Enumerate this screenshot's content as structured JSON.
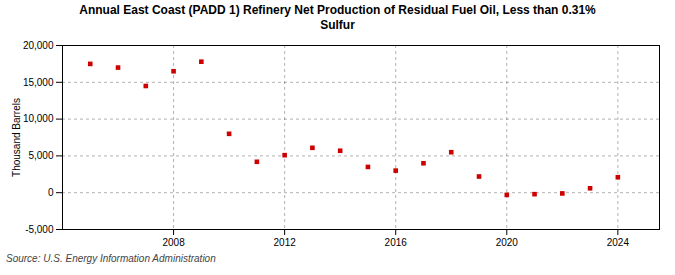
{
  "chart_data": {
    "type": "scatter",
    "title": "Annual East Coast (PADD 1) Refinery Net Production of Residual Fuel Oil, Less than 0.31%\nSulfur",
    "ylabel": "Thousand Barrels",
    "source": "Source: U.S. Energy Information Administration",
    "x": [
      2005,
      2006,
      2007,
      2008,
      2009,
      2010,
      2011,
      2012,
      2013,
      2014,
      2015,
      2016,
      2017,
      2018,
      2019,
      2020,
      2021,
      2022,
      2023,
      2024
    ],
    "values": [
      17500,
      17000,
      14500,
      16500,
      17800,
      8000,
      4200,
      5100,
      6100,
      5700,
      3500,
      3000,
      4000,
      5500,
      2200,
      -300,
      -200,
      -100,
      600,
      2100
    ],
    "color": "#cc0000",
    "marker": "square",
    "xlim": [
      2004,
      2025.5
    ],
    "xticks": [
      2008,
      2012,
      2016,
      2020,
      2024
    ],
    "ylim": [
      -5000,
      20000
    ],
    "yticks": [
      {
        "value": -5000,
        "label": "-5,000"
      },
      0,
      {
        "value": 5000,
        "label": "5,000"
      },
      {
        "value": 10000,
        "label": "10,000"
      },
      {
        "value": 15000,
        "label": "15,000"
      },
      {
        "value": 20000,
        "label": "20,000"
      }
    ],
    "grid": true
  }
}
